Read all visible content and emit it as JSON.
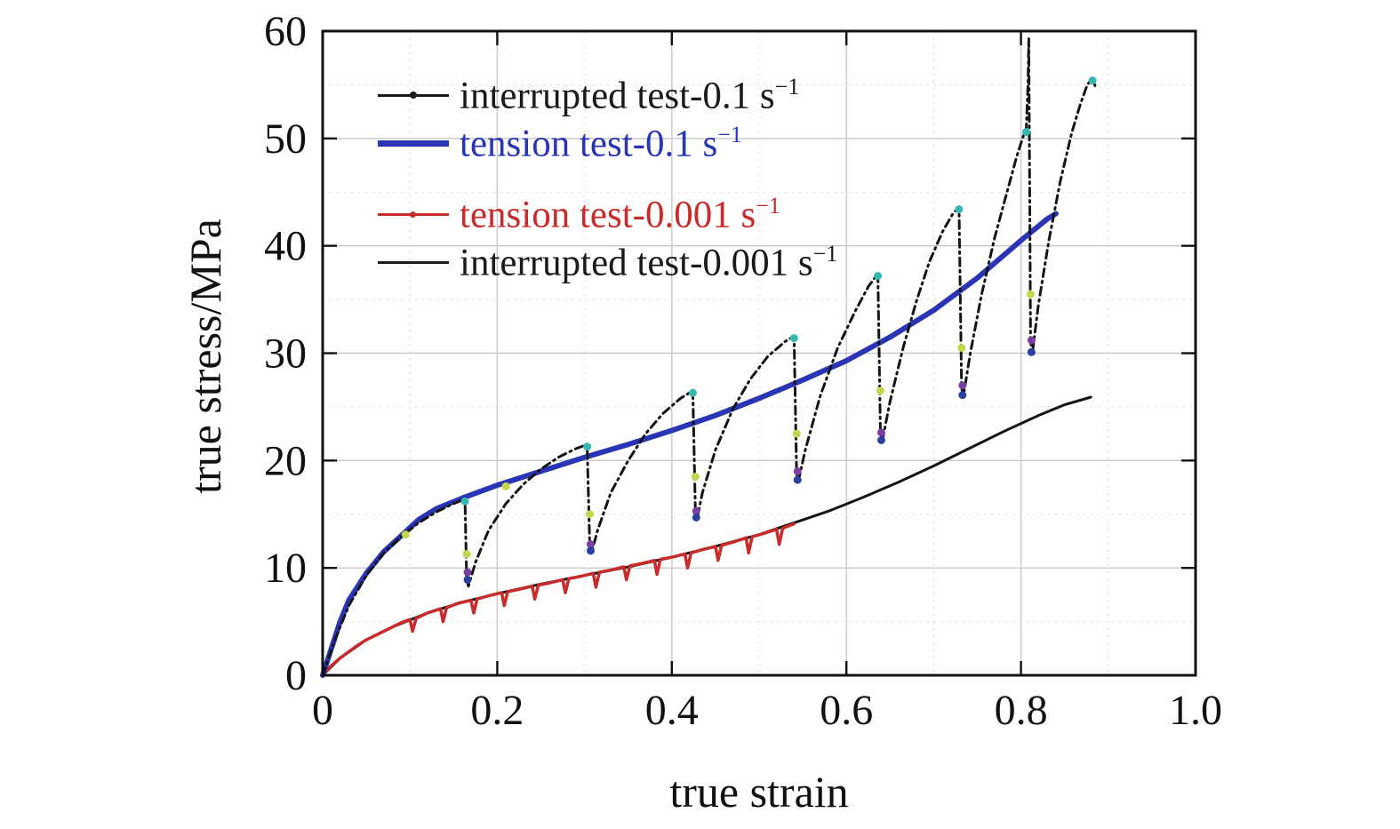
{
  "figure": {
    "xlabel": "true strain",
    "ylabel": "true stress/MPa"
  },
  "axes": {
    "x_ticks": [
      "0",
      "0.2",
      "0.4",
      "0.6",
      "0.8",
      "1.0"
    ],
    "x_tick_values": [
      0,
      0.2,
      0.4,
      0.6,
      0.8,
      1.0
    ],
    "y_ticks": [
      "0",
      "10",
      "20",
      "30",
      "40",
      "50",
      "60"
    ],
    "y_tick_values": [
      0,
      10,
      20,
      30,
      40,
      50,
      60
    ],
    "xlim": [
      0,
      1.0
    ],
    "ylim": [
      0,
      60
    ],
    "x_minor_step": 0.1,
    "y_minor_step": 5,
    "frame_color": "#111111",
    "major_grid_color": "#c9c9c9",
    "minor_grid_color": "#dcdcdc"
  },
  "legend": {
    "entries": [
      {
        "label": "interrupted test-0.1 s",
        "sup": "−1",
        "color": "#1a1a1a",
        "sample": "dot-line"
      },
      {
        "label": "tension test-0.1 s",
        "sup": "−1",
        "color": "#2a35b5",
        "sample": "thick"
      },
      {
        "label": "tension test-0.001 s",
        "sup": "−1",
        "color": "#c92a2a",
        "sample": "marker-line"
      },
      {
        "label": "interrupted test-0.001 s",
        "sup": "−1",
        "color": "#1a1a1a",
        "sample": "plain"
      }
    ]
  },
  "chart_data": {
    "type": "line",
    "title": "",
    "xlabel": "true strain",
    "ylabel": "true stress/MPa",
    "xlim": [
      0,
      1.0
    ],
    "ylim": [
      0,
      60
    ],
    "grid": true,
    "legend_position": "upper-left",
    "series": [
      {
        "name": "interrupted test-0.001 s⁻¹",
        "color": "#141414",
        "width": 3,
        "dash": null,
        "points": [
          [
            0,
            0
          ],
          [
            0.02,
            1.6
          ],
          [
            0.05,
            3.3
          ],
          [
            0.08,
            4.5
          ],
          [
            0.12,
            5.8
          ],
          [
            0.16,
            6.8
          ],
          [
            0.2,
            7.6
          ],
          [
            0.25,
            8.5
          ],
          [
            0.3,
            9.3
          ],
          [
            0.35,
            10.1
          ],
          [
            0.4,
            11.0
          ],
          [
            0.45,
            12.0
          ],
          [
            0.5,
            13.1
          ],
          [
            0.54,
            14.2
          ],
          [
            0.58,
            15.3
          ],
          [
            0.62,
            16.6
          ],
          [
            0.66,
            18.0
          ],
          [
            0.7,
            19.5
          ],
          [
            0.74,
            21.1
          ],
          [
            0.78,
            22.7
          ],
          [
            0.82,
            24.2
          ],
          [
            0.85,
            25.2
          ],
          [
            0.88,
            25.9
          ]
        ]
      },
      {
        "name": "tension test-0.001 s⁻¹",
        "color": "#c92a2a",
        "width": 3.5,
        "dash": null,
        "points": [
          [
            0,
            0
          ],
          [
            0.01,
            0.9
          ],
          [
            0.02,
            1.6
          ],
          [
            0.03,
            2.2
          ],
          [
            0.04,
            2.8
          ],
          [
            0.05,
            3.3
          ],
          [
            0.06,
            3.7
          ],
          [
            0.07,
            4.1
          ],
          [
            0.08,
            4.5
          ],
          [
            0.09,
            4.9
          ],
          [
            0.1,
            5.2
          ],
          [
            0.103,
            4.1
          ],
          [
            0.107,
            5.3
          ],
          [
            0.12,
            5.8
          ],
          [
            0.135,
            6.2
          ],
          [
            0.138,
            5.0
          ],
          [
            0.142,
            6.3
          ],
          [
            0.155,
            6.7
          ],
          [
            0.17,
            7.0
          ],
          [
            0.173,
            5.8
          ],
          [
            0.177,
            7.1
          ],
          [
            0.19,
            7.4
          ],
          [
            0.205,
            7.7
          ],
          [
            0.208,
            6.5
          ],
          [
            0.212,
            7.8
          ],
          [
            0.225,
            8.0
          ],
          [
            0.24,
            8.3
          ],
          [
            0.243,
            7.1
          ],
          [
            0.247,
            8.4
          ],
          [
            0.26,
            8.6
          ],
          [
            0.275,
            8.9
          ],
          [
            0.278,
            7.7
          ],
          [
            0.282,
            9.0
          ],
          [
            0.295,
            9.2
          ],
          [
            0.31,
            9.5
          ],
          [
            0.313,
            8.2
          ],
          [
            0.317,
            9.6
          ],
          [
            0.33,
            9.8
          ],
          [
            0.345,
            10.1
          ],
          [
            0.348,
            8.9
          ],
          [
            0.352,
            10.2
          ],
          [
            0.365,
            10.4
          ],
          [
            0.38,
            10.7
          ],
          [
            0.383,
            9.4
          ],
          [
            0.387,
            10.8
          ],
          [
            0.4,
            11.0
          ],
          [
            0.415,
            11.3
          ],
          [
            0.418,
            10.0
          ],
          [
            0.422,
            11.4
          ],
          [
            0.435,
            11.7
          ],
          [
            0.45,
            12.0
          ],
          [
            0.453,
            10.7
          ],
          [
            0.457,
            12.1
          ],
          [
            0.47,
            12.4
          ],
          [
            0.485,
            12.8
          ],
          [
            0.488,
            11.4
          ],
          [
            0.492,
            12.9
          ],
          [
            0.505,
            13.2
          ],
          [
            0.52,
            13.6
          ],
          [
            0.523,
            12.2
          ],
          [
            0.527,
            13.7
          ],
          [
            0.54,
            14.1
          ]
        ]
      },
      {
        "name": "tension test-0.1 s⁻¹",
        "color": "#2a35b5",
        "width": 6,
        "dash": null,
        "points": [
          [
            0,
            0
          ],
          [
            0.01,
            2.5
          ],
          [
            0.02,
            5
          ],
          [
            0.03,
            7
          ],
          [
            0.05,
            9.5
          ],
          [
            0.07,
            11.5
          ],
          [
            0.09,
            13
          ],
          [
            0.11,
            14.5
          ],
          [
            0.13,
            15.5
          ],
          [
            0.16,
            16.5
          ],
          [
            0.2,
            17.7
          ],
          [
            0.25,
            19
          ],
          [
            0.3,
            20.3
          ],
          [
            0.35,
            21.5
          ],
          [
            0.4,
            22.8
          ],
          [
            0.45,
            24.2
          ],
          [
            0.5,
            25.8
          ],
          [
            0.55,
            27.5
          ],
          [
            0.6,
            29.3
          ],
          [
            0.65,
            31.5
          ],
          [
            0.7,
            34
          ],
          [
            0.75,
            37
          ],
          [
            0.8,
            40.5
          ],
          [
            0.83,
            42.5
          ],
          [
            0.84,
            43
          ]
        ]
      },
      {
        "name": "interrupted test-0.1 s⁻¹",
        "color": "#141414",
        "width": 3,
        "dash": "9 5 2 5",
        "points": [
          [
            0,
            0
          ],
          [
            0.015,
            3.5
          ],
          [
            0.03,
            6.5
          ],
          [
            0.05,
            9.3
          ],
          [
            0.07,
            11.4
          ],
          [
            0.09,
            12.9
          ],
          [
            0.11,
            14.2
          ],
          [
            0.13,
            15.2
          ],
          [
            0.15,
            16.0
          ],
          [
            0.163,
            16.4
          ],
          [
            0.165,
            9.0
          ],
          [
            0.167,
            8.3
          ],
          [
            0.175,
            10.5
          ],
          [
            0.19,
            13.5
          ],
          [
            0.21,
            16.0
          ],
          [
            0.23,
            17.8
          ],
          [
            0.25,
            19.2
          ],
          [
            0.27,
            20.3
          ],
          [
            0.29,
            21.1
          ],
          [
            0.303,
            21.5
          ],
          [
            0.306,
            12.0
          ],
          [
            0.308,
            11.4
          ],
          [
            0.315,
            13.5
          ],
          [
            0.33,
            17.0
          ],
          [
            0.35,
            20.0
          ],
          [
            0.37,
            22.5
          ],
          [
            0.39,
            24.4
          ],
          [
            0.41,
            25.8
          ],
          [
            0.424,
            26.5
          ],
          [
            0.427,
            15.3
          ],
          [
            0.429,
            14.6
          ],
          [
            0.435,
            17.0
          ],
          [
            0.45,
            21.0
          ],
          [
            0.47,
            24.8
          ],
          [
            0.49,
            27.6
          ],
          [
            0.51,
            29.7
          ],
          [
            0.53,
            31.1
          ],
          [
            0.54,
            31.6
          ],
          [
            0.543,
            18.8
          ],
          [
            0.545,
            18.1
          ],
          [
            0.553,
            21.0
          ],
          [
            0.57,
            26.0
          ],
          [
            0.59,
            30.5
          ],
          [
            0.61,
            33.9
          ],
          [
            0.625,
            36.2
          ],
          [
            0.636,
            37.4
          ],
          [
            0.639,
            22.5
          ],
          [
            0.641,
            21.8
          ],
          [
            0.65,
            25.5
          ],
          [
            0.665,
            30.5
          ],
          [
            0.68,
            34.8
          ],
          [
            0.695,
            38.5
          ],
          [
            0.71,
            41.3
          ],
          [
            0.722,
            43.0
          ],
          [
            0.729,
            43.6
          ],
          [
            0.732,
            26.8
          ],
          [
            0.734,
            26.0
          ],
          [
            0.742,
            30.0
          ],
          [
            0.755,
            35.5
          ],
          [
            0.77,
            40.8
          ],
          [
            0.785,
            45.3
          ],
          [
            0.795,
            48.3
          ],
          [
            0.803,
            50.3
          ],
          [
            0.806,
            50.8
          ],
          [
            0.808,
            55.0
          ],
          [
            0.809,
            59.3
          ],
          [
            0.811,
            31.0
          ],
          [
            0.813,
            30.0
          ],
          [
            0.82,
            34.5
          ],
          [
            0.832,
            40.5
          ],
          [
            0.845,
            46.0
          ],
          [
            0.858,
            50.5
          ],
          [
            0.868,
            53.2
          ],
          [
            0.876,
            55.0
          ],
          [
            0.882,
            55.6
          ],
          [
            0.886,
            54.6
          ]
        ]
      }
    ],
    "markers": [
      {
        "name": "teal-dots",
        "color": "#35b8b0",
        "points": [
          [
            0.163,
            16.2
          ],
          [
            0.303,
            21.3
          ],
          [
            0.424,
            26.3
          ],
          [
            0.54,
            31.4
          ],
          [
            0.636,
            37.2
          ],
          [
            0.729,
            43.4
          ],
          [
            0.806,
            50.6
          ],
          [
            0.882,
            55.4
          ]
        ]
      },
      {
        "name": "yellow-green-dots",
        "color": "#c3d44d",
        "points": [
          [
            0.095,
            13.1
          ],
          [
            0.165,
            11.3
          ],
          [
            0.306,
            15.0
          ],
          [
            0.427,
            18.5
          ],
          [
            0.543,
            22.5
          ],
          [
            0.639,
            26.5
          ],
          [
            0.732,
            30.5
          ],
          [
            0.811,
            35.5
          ],
          [
            0.21,
            17.6
          ]
        ]
      },
      {
        "name": "purple-dots",
        "color": "#7b3fa0",
        "points": [
          [
            0.166,
            9.6
          ],
          [
            0.307,
            12.2
          ],
          [
            0.428,
            15.3
          ],
          [
            0.544,
            19.0
          ],
          [
            0.64,
            22.6
          ],
          [
            0.733,
            27.0
          ],
          [
            0.812,
            31.2
          ]
        ]
      },
      {
        "name": "navy-dots",
        "color": "#2b3f9e",
        "points": [
          [
            0.166,
            8.9
          ],
          [
            0.307,
            11.6
          ],
          [
            0.428,
            14.7
          ],
          [
            0.544,
            18.2
          ],
          [
            0.64,
            21.9
          ],
          [
            0.733,
            26.1
          ],
          [
            0.812,
            30.1
          ]
        ]
      }
    ]
  }
}
